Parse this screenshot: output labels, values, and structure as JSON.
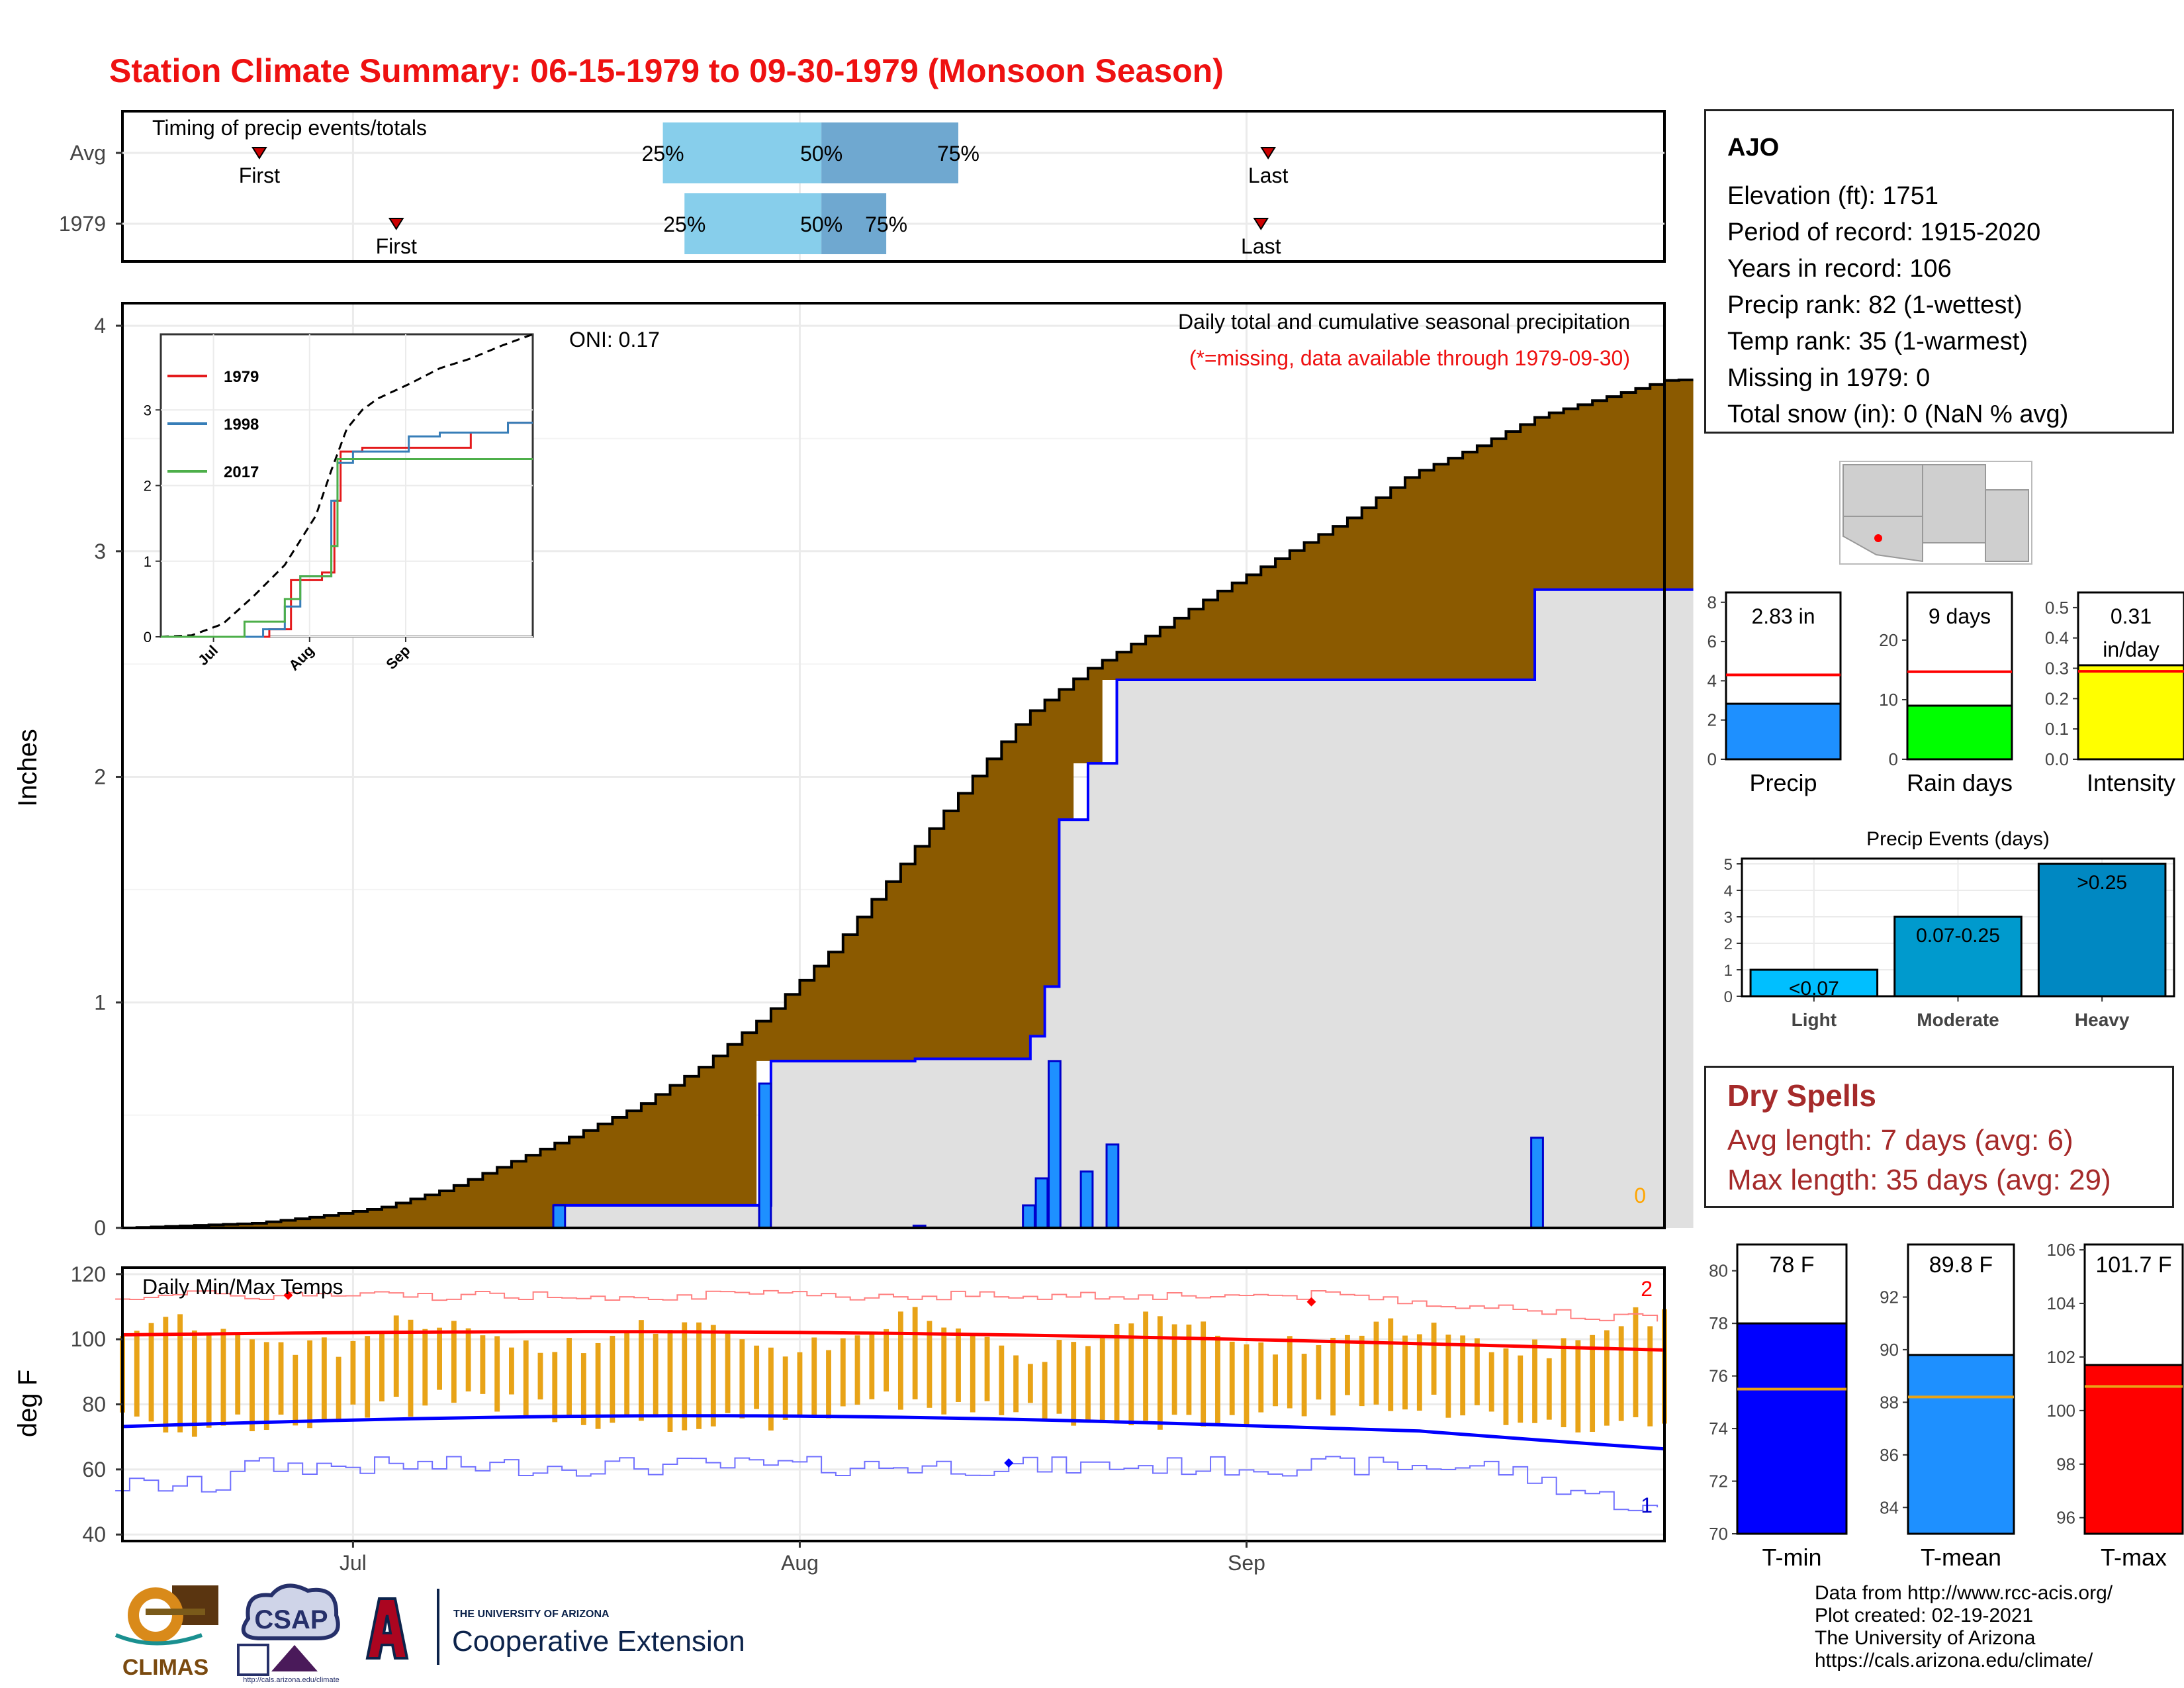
{
  "title": "Station Climate Summary: 06-15-1979 to 09-30-1979 (Monsoon Season)",
  "timing": {
    "label": "Timing of precip events/totals",
    "rows": [
      {
        "name": "Avg",
        "first_day": 10,
        "q25": 38,
        "q50": 49,
        "q75": 58.5,
        "last_day": 80,
        "first_label": "First",
        "last_label": "Last",
        "q25_label": "25%",
        "q50_label": "50%",
        "q75_label": "75%"
      },
      {
        "name": "1979",
        "first_day": 19.5,
        "q25": 39.5,
        "q50": 49,
        "q75": 53.5,
        "last_day": 79.5,
        "first_label": "First",
        "last_label": "Last",
        "q25_label": "25%",
        "q50_label": "50%",
        "q75_label": "75%"
      }
    ]
  },
  "precip_panel": {
    "ylabel": "Inches",
    "oni_label": "ONI: 0.17",
    "desc_line1": "Daily total and cumulative seasonal precipitation",
    "desc_line2": "(*=missing, data available through 1979-09-30)",
    "missing_count": "0",
    "yticks": [
      "0",
      "1",
      "2",
      "3",
      "4"
    ],
    "xticks": [
      "Jul",
      "Aug",
      "Sep"
    ]
  },
  "chart_data": [
    {
      "type": "area",
      "title": "Daily total and cumulative seasonal precipitation",
      "ylabel": "Inches",
      "ylim": [
        0,
        4.1
      ],
      "x_start": "1979-06-15",
      "x_end": "1979-09-30",
      "avg_cumulative": {
        "name": "Average cumulative",
        "points": [
          [
            0,
            0
          ],
          [
            5,
            0.01
          ],
          [
            10,
            0.02
          ],
          [
            15,
            0.05
          ],
          [
            20,
            0.09
          ],
          [
            25,
            0.17
          ],
          [
            30,
            0.29
          ],
          [
            35,
            0.41
          ],
          [
            40,
            0.54
          ],
          [
            45,
            0.72
          ],
          [
            50,
            0.95
          ],
          [
            55,
            1.23
          ],
          [
            60,
            1.58
          ],
          [
            65,
            1.93
          ],
          [
            70,
            2.27
          ],
          [
            75,
            2.48
          ],
          [
            80,
            2.64
          ],
          [
            85,
            2.82
          ],
          [
            90,
            2.98
          ],
          [
            95,
            3.14
          ],
          [
            100,
            3.34
          ],
          [
            105,
            3.46
          ],
          [
            110,
            3.6
          ],
          [
            115,
            3.68
          ],
          [
            120,
            3.76
          ]
        ]
      },
      "obs_cumulative": {
        "name": "1979",
        "points": [
          [
            0,
            0
          ],
          [
            34,
            0
          ],
          [
            34,
            0.1
          ],
          [
            50,
            0.1
          ],
          [
            50,
            0.74
          ],
          [
            62,
            0.74
          ],
          [
            62,
            0.75
          ],
          [
            71,
            0.75
          ],
          [
            71,
            0.85
          ],
          [
            72,
            0.85
          ],
          [
            72,
            1.07
          ],
          [
            73,
            1.07
          ],
          [
            73,
            1.81
          ],
          [
            75,
            1.81
          ],
          [
            75,
            2.06
          ],
          [
            77,
            2.06
          ],
          [
            77,
            2.43
          ],
          [
            110,
            2.43
          ],
          [
            110,
            2.83
          ],
          [
            120,
            2.83
          ]
        ]
      },
      "daily": [
        {
          "x": 34.5,
          "value": 0.1
        },
        {
          "x": 50.5,
          "value": 0.64
        },
        {
          "x": 62.5,
          "value": 0.01
        },
        {
          "x": 71,
          "value": 0.1
        },
        {
          "x": 72,
          "value": 0.22
        },
        {
          "x": 73,
          "value": 0.74
        },
        {
          "x": 75.5,
          "value": 0.25
        },
        {
          "x": 77.5,
          "value": 0.37
        },
        {
          "x": 110.5,
          "value": 0.4
        }
      ]
    },
    {
      "type": "line",
      "title": "Cumulative precip inset",
      "xticks": [
        "Jul",
        "Aug",
        "Sep"
      ],
      "yticks": [
        0,
        1,
        2,
        3
      ],
      "ylim": [
        0,
        4
      ],
      "avg": [
        [
          0,
          0
        ],
        [
          10,
          0.02
        ],
        [
          20,
          0.17
        ],
        [
          30,
          0.54
        ],
        [
          40,
          0.95
        ],
        [
          50,
          1.6
        ],
        [
          55,
          2.2
        ],
        [
          60,
          2.75
        ],
        [
          65,
          3.0
        ],
        [
          70,
          3.15
        ],
        [
          80,
          3.34
        ],
        [
          90,
          3.55
        ],
        [
          100,
          3.68
        ],
        [
          110,
          3.85
        ],
        [
          120,
          4.0
        ]
      ],
      "series": [
        {
          "name": "1979",
          "color": "#e41a1c",
          "points": [
            [
              0,
              0
            ],
            [
              35,
              0
            ],
            [
              35,
              0.1
            ],
            [
              42,
              0.1
            ],
            [
              42,
              0.75
            ],
            [
              52,
              0.75
            ],
            [
              52,
              0.85
            ],
            [
              56,
              0.85
            ],
            [
              56,
              1.8
            ],
            [
              58,
              1.8
            ],
            [
              58,
              2.45
            ],
            [
              65,
              2.45
            ],
            [
              65,
              2.5
            ],
            [
              100,
              2.5
            ],
            [
              100,
              2.7
            ],
            [
              112,
              2.7
            ],
            [
              112,
              2.83
            ],
            [
              120,
              2.83
            ]
          ]
        },
        {
          "name": "1998",
          "color": "#377eb8",
          "points": [
            [
              0,
              0
            ],
            [
              33,
              0
            ],
            [
              33,
              0.1
            ],
            [
              40,
              0.1
            ],
            [
              40,
              0.4
            ],
            [
              45,
              0.4
            ],
            [
              45,
              0.8
            ],
            [
              55,
              0.8
            ],
            [
              55,
              1.8
            ],
            [
              57,
              1.8
            ],
            [
              57,
              2.3
            ],
            [
              62,
              2.3
            ],
            [
              62,
              2.45
            ],
            [
              80,
              2.45
            ],
            [
              80,
              2.65
            ],
            [
              90,
              2.65
            ],
            [
              90,
              2.7
            ],
            [
              112,
              2.7
            ],
            [
              112,
              2.83
            ],
            [
              120,
              2.83
            ]
          ]
        },
        {
          "name": "2017",
          "color": "#4daf4a",
          "points": [
            [
              0,
              0
            ],
            [
              27,
              0
            ],
            [
              27,
              0.2
            ],
            [
              40,
              0.2
            ],
            [
              40,
              0.5
            ],
            [
              45,
              0.5
            ],
            [
              45,
              0.8
            ],
            [
              55,
              0.8
            ],
            [
              55,
              1.2
            ],
            [
              57,
              1.2
            ],
            [
              57,
              2.35
            ],
            [
              120,
              2.35
            ]
          ]
        }
      ]
    },
    {
      "type": "line",
      "title": "Daily Min/Max Temps",
      "ylabel": "deg F",
      "ylim": [
        38,
        122
      ],
      "yticks": [
        40,
        60,
        80,
        100,
        120
      ],
      "max_count": "2",
      "min_count": "1"
    },
    {
      "type": "bar",
      "title": "Precip",
      "value": 2.83,
      "value_label": "2.83 in",
      "avg": 4.3,
      "ylim": [
        0,
        8.5
      ],
      "yticks": [
        0,
        2,
        4,
        6,
        8
      ],
      "color": "#1e90ff",
      "xlabel": "Precip"
    },
    {
      "type": "bar",
      "title": "Rain days",
      "value": 9,
      "value_label": "9 days",
      "avg": 14.7,
      "ylim": [
        0,
        28
      ],
      "yticks": [
        0,
        10,
        20
      ],
      "color": "#00ff00",
      "xlabel": "Rain days"
    },
    {
      "type": "bar",
      "title": "Intensity",
      "value": 0.31,
      "value_label": "0.31",
      "value_label2": "in/day",
      "avg": 0.29,
      "ylim": [
        0,
        0.55
      ],
      "yticks": [
        0.0,
        0.1,
        0.2,
        0.3,
        0.4,
        0.5
      ],
      "color": "#ffff00",
      "xlabel": "Intensity"
    },
    {
      "type": "bar",
      "title": "Precip Events (days)",
      "categories": [
        "Light",
        "Moderate",
        "Heavy"
      ],
      "values": [
        1,
        3,
        5
      ],
      "bar_labels": [
        "<0.07",
        "0.07-0.25",
        ">0.25"
      ],
      "colors": [
        "#00bfff",
        "#009acd",
        "#0088c2"
      ],
      "ylim": [
        0,
        5.2
      ],
      "yticks": [
        0,
        1,
        2,
        3,
        4,
        5
      ]
    },
    {
      "type": "bar",
      "title": "T-min",
      "value": 78,
      "value_label": "78 F",
      "avg": 75.5,
      "ylim": [
        70,
        81
      ],
      "yticks": [
        70,
        72,
        74,
        76,
        78,
        80
      ],
      "color": "#0000ff",
      "xlabel": "T-min"
    },
    {
      "type": "bar",
      "title": "T-mean",
      "value": 89.8,
      "value_label": "89.8 F",
      "avg": 88.2,
      "ylim": [
        83,
        94
      ],
      "yticks": [
        84,
        86,
        88,
        90,
        92
      ],
      "color": "#1e90ff",
      "xlabel": "T-mean"
    },
    {
      "type": "bar",
      "title": "T-max",
      "value": 101.7,
      "value_label": "101.7 F",
      "avg": 100.9,
      "ylim": [
        95.4,
        106.2
      ],
      "yticks": [
        96,
        98,
        100,
        102,
        104,
        106
      ],
      "color": "#ff0000",
      "xlabel": "T-max"
    }
  ],
  "station": {
    "name": "AJO",
    "lines": [
      "Elevation (ft): 1751",
      "Period of record: 1915-2020",
      "Years in record: 106",
      "Precip rank: 82 (1-wettest)",
      "Temp rank: 35 (1-warmest)",
      "Missing in 1979: 0",
      "Total snow (in): 0 (NaN % avg)"
    ]
  },
  "dry_spells": {
    "title": "Dry Spells",
    "avg_length": "Avg length: 7 days (avg: 6)",
    "max_length": "Max length: 35 days (avg: 29)"
  },
  "credits": {
    "line1": "Data from http://www.rcc-acis.org/",
    "line2": "Plot created: 02-19-2021",
    "line3": "The University of Arizona",
    "line4": "https://cals.arizona.edu/climate/"
  },
  "logos": {
    "climas": "CLIMAS",
    "csap": "CSAP",
    "csap_url": "http://cals.arizona.edu/climate",
    "ua_small": "THE UNIVERSITY OF ARIZONA",
    "ua_big": "Cooperative Extension"
  },
  "colors": {
    "title": "#ee1111",
    "brown": "#8b5a00",
    "green": "#006400",
    "obs_fill": "#e0e0e0",
    "obs_line": "#0000ff",
    "bar": "#1e90ff",
    "temp_bar": "#e8a317",
    "tmax": "#ff0000",
    "tmin": "#0000ff"
  }
}
